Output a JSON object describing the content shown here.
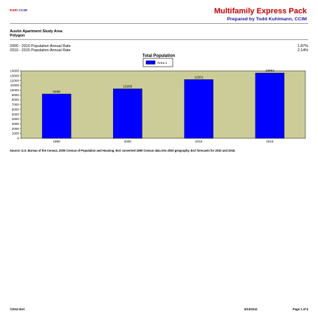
{
  "header": {
    "logo_text_left": "ESRI",
    "logo_text_right": "CCIM",
    "title": "Multifamily Express Pack",
    "prepared_by": "Prepared by Todd Kuhlmann, CCIM"
  },
  "area": {
    "name": "Austin Apartment Study Area",
    "type": "Polygon"
  },
  "rates": [
    {
      "label": "2000 - 2010 Population Annual Rate",
      "value": "1.87%"
    },
    {
      "label": "2010 - 2015 Population Annual Rate",
      "value": "2.14%"
    }
  ],
  "chart_data": {
    "type": "bar",
    "title": "Total Population",
    "categories": [
      "1990",
      "2000",
      "2010",
      "2015"
    ],
    "series": [
      {
        "name": "Area 1",
        "values": [
          9199,
          10280,
          12201,
          13564
        ],
        "color": "#0000ff"
      }
    ],
    "ylim": [
      0,
      14000
    ],
    "yticks": [
      0,
      1000,
      2000,
      3000,
      4000,
      5000,
      6000,
      7000,
      8000,
      9000,
      10000,
      11000,
      12000,
      13000,
      14000
    ],
    "data_labels": [
      "9199",
      "10280",
      "12201",
      "13564"
    ],
    "legend_position": "top-center",
    "plot_background": "#cccc99",
    "grid": false
  },
  "source": "Source: U.S. Bureau of the Census, 2000 Census of Population and Housing. Esri converted 1990 Census data into 2000 geography. Esri forecasts for 2010 and 2015.",
  "footer": {
    "copyright": "©2011 Esri",
    "date": "6/13/2012",
    "page": "Page 1 of 6"
  }
}
